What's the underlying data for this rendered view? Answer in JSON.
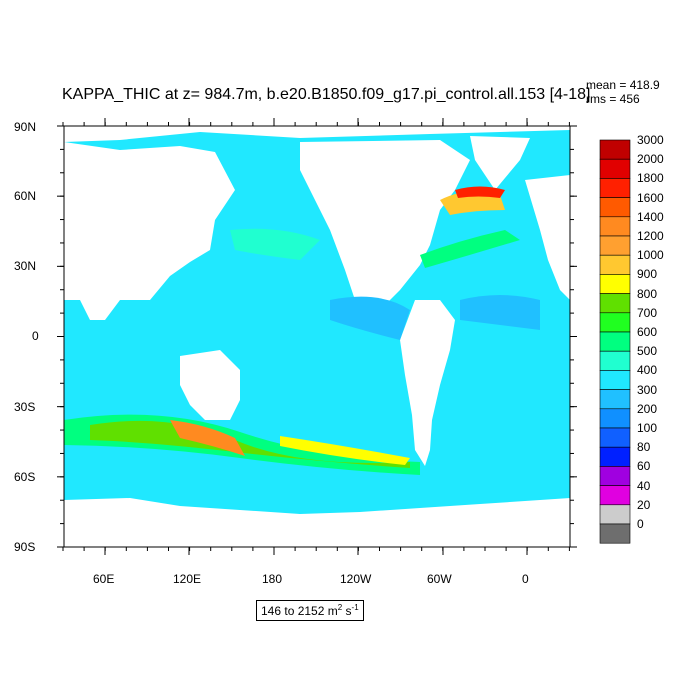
{
  "title": "KAPPA_THIC at z= 984.7m, b.e20.B1850.f09_g17.pi_control.all.153 [4-18]",
  "stats": {
    "mean": "mean = 418.9",
    "rms": "rms = 456"
  },
  "range_label": {
    "prefix": "146 to 2152 m",
    "sup1": "2",
    "mid": " s",
    "sup2": "-1"
  },
  "lat_ticks": [
    "90N",
    "60N",
    "30N",
    "0",
    "30S",
    "60S",
    "90S"
  ],
  "lon_ticks": [
    "60E",
    "120E",
    "180",
    "120W",
    "60W",
    "0"
  ],
  "colorbar": {
    "levels": [
      "3000",
      "2000",
      "1800",
      "1600",
      "1400",
      "1200",
      "1000",
      "900",
      "800",
      "700",
      "600",
      "500",
      "400",
      "300",
      "200",
      "100",
      "80",
      "60",
      "40",
      "20",
      "0"
    ],
    "colors": [
      "#c00000",
      "#e10000",
      "#ff2000",
      "#ff5a00",
      "#ff8a20",
      "#ffa030",
      "#ffc830",
      "#ffff00",
      "#60e000",
      "#20ff20",
      "#00ff80",
      "#20ffd0",
      "#20e8ff",
      "#20c0ff",
      "#1090ff",
      "#1060ff",
      "#0020ff",
      "#a000e0",
      "#e000e0",
      "#cccccc",
      "#6e6e6e"
    ]
  },
  "fill_colors": {
    "ocean_base": "#20e8ff",
    "ocean_mid": "#20c0ff",
    "ocean_cyan": "#20ffd0",
    "green": "#00ff80",
    "lime": "#60e000",
    "yellow": "#ffff00",
    "orange": "#ff8a20",
    "dark_orange": "#ff5a00",
    "red": "#ff2000",
    "land": "#ffffff"
  }
}
